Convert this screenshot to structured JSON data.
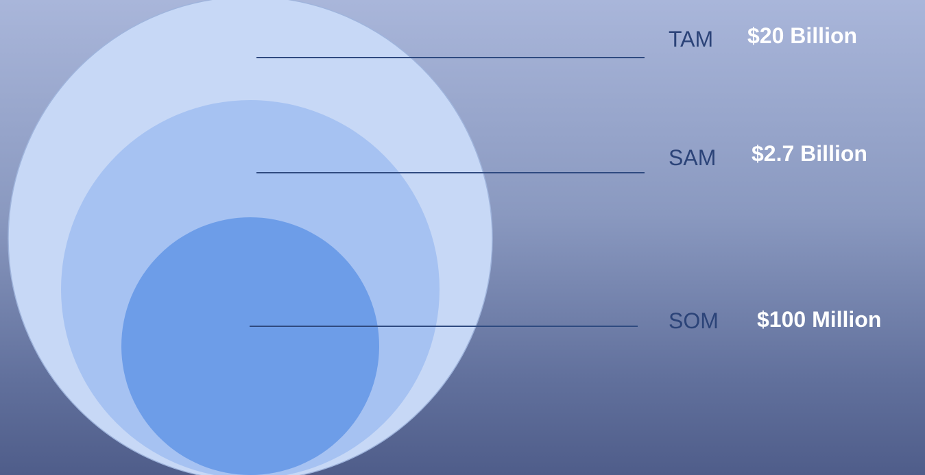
{
  "colors": {
    "outer_circle": "#c7d8f6",
    "middle_circle": "#a6c2f2",
    "inner_circle": "#6d9de8",
    "leader_line": "#2f4a80",
    "label_name": "#2b4378",
    "label_value": "#ffffff"
  },
  "markets": [
    {
      "name": "TAM",
      "value": "$20 Billion"
    },
    {
      "name": "SAM",
      "value": "$2.7 Billion"
    },
    {
      "name": "SOM",
      "value": "$100 Million"
    }
  ]
}
